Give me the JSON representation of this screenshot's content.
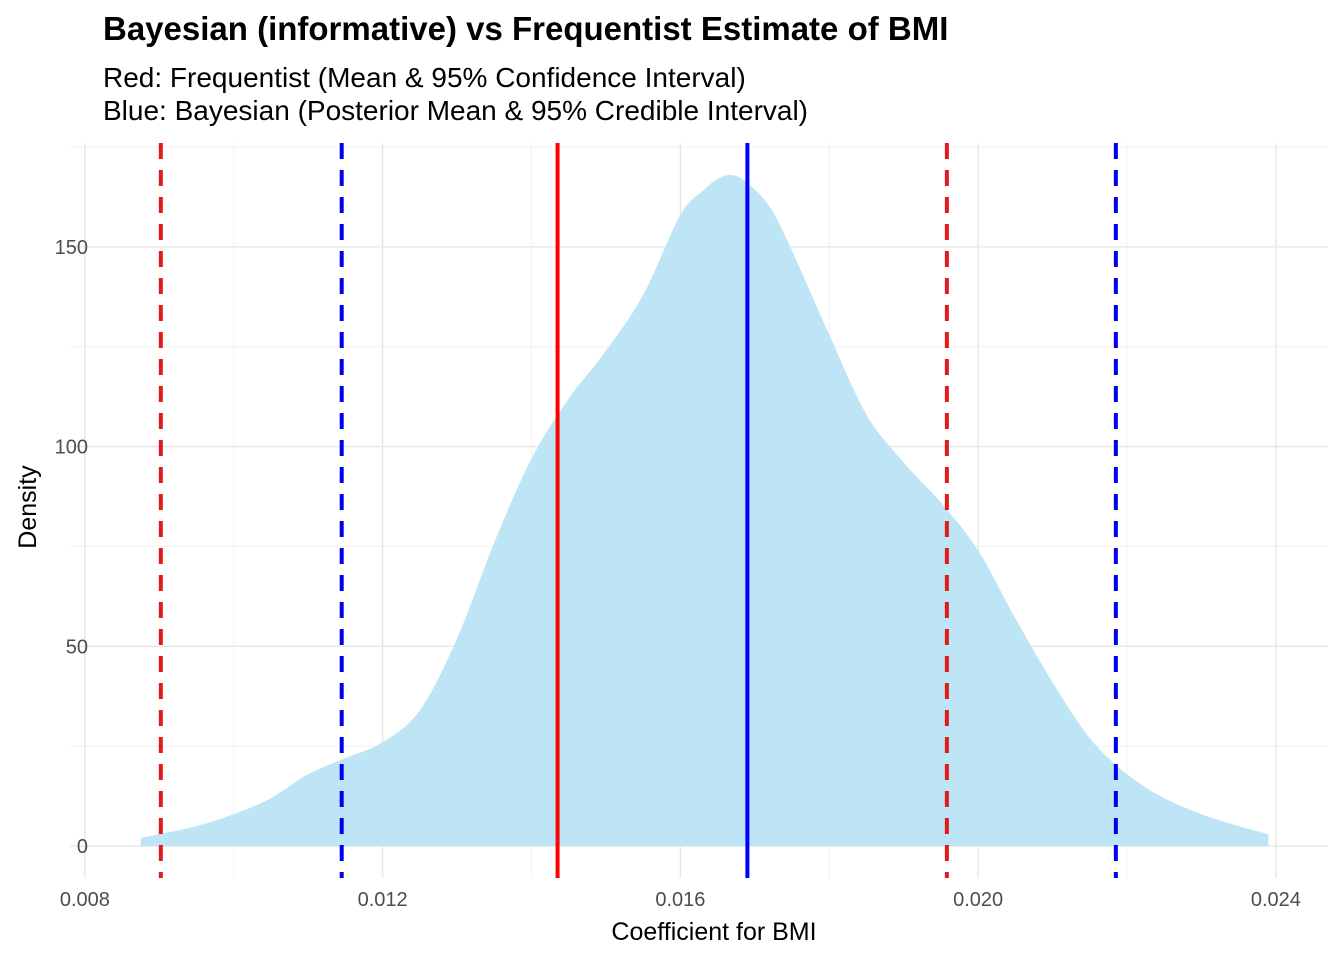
{
  "chart_data": {
    "type": "area",
    "title": "Bayesian (informative) vs Frequentist Estimate of BMI",
    "subtitle_lines": [
      "Red: Frequentist (Mean & 95% Confidence Interval)",
      "Blue: Bayesian (Posterior Mean & 95% Credible Interval)"
    ],
    "xlabel": "Coefficient for BMI",
    "ylabel": "Density",
    "xlim": [
      0.0078,
      0.0247
    ],
    "ylim": [
      -8,
      176
    ],
    "x_ticks": [
      {
        "value": 0.008,
        "label": "0.008"
      },
      {
        "value": 0.012,
        "label": "0.012"
      },
      {
        "value": 0.016,
        "label": "0.016"
      },
      {
        "value": 0.02,
        "label": "0.020"
      },
      {
        "value": 0.024,
        "label": "0.024"
      }
    ],
    "y_ticks": [
      {
        "value": 0,
        "label": "0"
      },
      {
        "value": 50,
        "label": "50"
      },
      {
        "value": 100,
        "label": "100"
      },
      {
        "value": 150,
        "label": "150"
      }
    ],
    "grid": true,
    "series": [
      {
        "fill": "#bee5f5",
        "x": [
          0.00875,
          0.009,
          0.0095,
          0.01,
          0.0105,
          0.011,
          0.0115,
          0.012,
          0.0125,
          0.013,
          0.0135,
          0.014,
          0.0145,
          0.015,
          0.0155,
          0.016,
          0.0163,
          0.0165,
          0.0167,
          0.0169,
          0.0172,
          0.0175,
          0.018,
          0.0185,
          0.019,
          0.0195,
          0.02,
          0.0205,
          0.021,
          0.0215,
          0.022,
          0.0225,
          0.023,
          0.0235,
          0.0239
        ],
        "y": [
          2,
          3,
          5,
          8,
          12,
          18,
          22,
          26,
          34,
          52,
          76,
          97,
          112,
          124,
          138,
          158,
          164,
          167,
          168,
          166,
          160,
          149,
          128,
          108,
          96,
          86,
          74,
          57,
          41,
          27,
          18,
          12,
          8,
          5,
          3
        ]
      }
    ],
    "vlines": [
      {
        "x": 0.00902,
        "color": "#e31a1c",
        "style": "dashed"
      },
      {
        "x": 0.01435,
        "color": "#ff0000",
        "style": "solid"
      },
      {
        "x": 0.01958,
        "color": "#e31a1c",
        "style": "dashed"
      },
      {
        "x": 0.01145,
        "color": "#0000ee",
        "style": "dashed"
      },
      {
        "x": 0.0169,
        "color": "#0000ff",
        "style": "solid"
      },
      {
        "x": 0.02185,
        "color": "#0000ee",
        "style": "dashed"
      }
    ]
  }
}
